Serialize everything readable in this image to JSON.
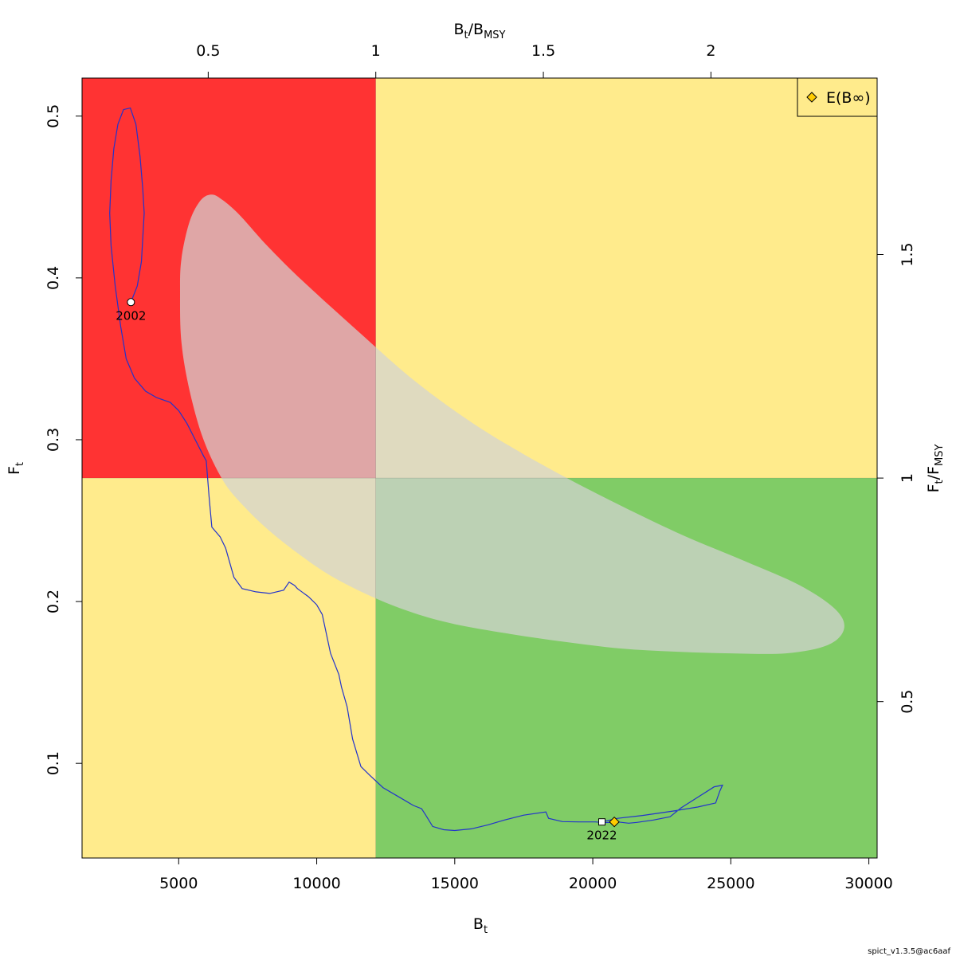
{
  "chart_data": {
    "type": "line",
    "xlabel": {
      "main": "B",
      "sub": "t"
    },
    "ylabel": {
      "main": "F",
      "sub": "t"
    },
    "top_label": {
      "main": "B",
      "sub": "t",
      "slash": "/",
      "main2": "B",
      "sub2": "MSY"
    },
    "right_label": {
      "main": "F",
      "sub": "t",
      "slash": "/",
      "main2": "F",
      "sub2": "MSY"
    },
    "xlim": [
      1500,
      30300
    ],
    "ylim": [
      0.0415,
      0.5235
    ],
    "x_ticks": [
      {
        "v": 5000,
        "label": "5000"
      },
      {
        "v": 10000,
        "label": "10000"
      },
      {
        "v": 15000,
        "label": "15000"
      },
      {
        "v": 20000,
        "label": "20000"
      },
      {
        "v": 25000,
        "label": "25000"
      },
      {
        "v": 30000,
        "label": "30000"
      }
    ],
    "y_ticks": [
      {
        "v": 0.1,
        "label": "0.1"
      },
      {
        "v": 0.2,
        "label": "0.2"
      },
      {
        "v": 0.3,
        "label": "0.3"
      },
      {
        "v": 0.4,
        "label": "0.4"
      },
      {
        "v": 0.5,
        "label": "0.5"
      }
    ],
    "bmsy": 12140,
    "fmsy": 0.2763,
    "top_ticks": [
      {
        "v": 0.5,
        "label": "0.5"
      },
      {
        "v": 1,
        "label": "1"
      },
      {
        "v": 1.5,
        "label": "1.5"
      },
      {
        "v": 2,
        "label": "2"
      }
    ],
    "right_ticks": [
      {
        "v": 0.5,
        "label": "0.5"
      },
      {
        "v": 1,
        "label": "1"
      },
      {
        "v": 1.5,
        "label": "1.5"
      }
    ],
    "colors": {
      "red": "#ff3333",
      "yellow": "#ffeb8c",
      "green": "#80cc66",
      "ellipse": "#d3d3d3",
      "trajectory": "#2233cc",
      "diamond": "#ffcc00"
    },
    "confidence_region": [
      [
        6200,
        0.4515
      ],
      [
        5800,
        0.448
      ],
      [
        5400,
        0.435
      ],
      [
        5100,
        0.412
      ],
      [
        5050,
        0.39
      ],
      [
        5100,
        0.36
      ],
      [
        5400,
        0.33
      ],
      [
        5900,
        0.3
      ],
      [
        6600,
        0.275
      ],
      [
        7300,
        0.26
      ],
      [
        8200,
        0.245
      ],
      [
        9300,
        0.23
      ],
      [
        10500,
        0.216
      ],
      [
        12000,
        0.203
      ],
      [
        13500,
        0.193
      ],
      [
        15000,
        0.186
      ],
      [
        17000,
        0.18
      ],
      [
        19000,
        0.175
      ],
      [
        21000,
        0.171
      ],
      [
        23000,
        0.169
      ],
      [
        25000,
        0.168
      ],
      [
        27000,
        0.168
      ],
      [
        28500,
        0.173
      ],
      [
        29100,
        0.183
      ],
      [
        28800,
        0.195
      ],
      [
        27500,
        0.21
      ],
      [
        25500,
        0.225
      ],
      [
        23000,
        0.243
      ],
      [
        20000,
        0.268
      ],
      [
        17500,
        0.291
      ],
      [
        15500,
        0.312
      ],
      [
        13500,
        0.337
      ],
      [
        11500,
        0.367
      ],
      [
        9500,
        0.398
      ],
      [
        8200,
        0.42
      ],
      [
        7200,
        0.439
      ],
      [
        6600,
        0.448
      ],
      [
        6200,
        0.4515
      ]
    ],
    "trajectory": [
      [
        3270,
        0.385
      ],
      [
        3500,
        0.395
      ],
      [
        3650,
        0.41
      ],
      [
        3750,
        0.44
      ],
      [
        3700,
        0.455
      ],
      [
        3600,
        0.475
      ],
      [
        3450,
        0.495
      ],
      [
        3250,
        0.505
      ],
      [
        3000,
        0.504
      ],
      [
        2800,
        0.495
      ],
      [
        2650,
        0.48
      ],
      [
        2550,
        0.46
      ],
      [
        2500,
        0.44
      ],
      [
        2550,
        0.42
      ],
      [
        2700,
        0.395
      ],
      [
        2900,
        0.37
      ],
      [
        3100,
        0.35
      ],
      [
        3400,
        0.338
      ],
      [
        3800,
        0.33
      ],
      [
        4200,
        0.326
      ],
      [
        4700,
        0.323
      ],
      [
        5000,
        0.318
      ],
      [
        5300,
        0.31
      ],
      [
        5600,
        0.3
      ],
      [
        5900,
        0.29
      ],
      [
        6000,
        0.287
      ],
      [
        6100,
        0.265
      ],
      [
        6200,
        0.246
      ],
      [
        6500,
        0.24
      ],
      [
        6700,
        0.233
      ],
      [
        7000,
        0.215
      ],
      [
        7300,
        0.208
      ],
      [
        7800,
        0.206
      ],
      [
        8300,
        0.205
      ],
      [
        8800,
        0.207
      ],
      [
        9000,
        0.212
      ],
      [
        9200,
        0.21
      ],
      [
        9300,
        0.208
      ],
      [
        9700,
        0.203
      ],
      [
        10000,
        0.198
      ],
      [
        10200,
        0.192
      ],
      [
        10500,
        0.168
      ],
      [
        10800,
        0.155
      ],
      [
        10900,
        0.147
      ],
      [
        11100,
        0.135
      ],
      [
        11300,
        0.115
      ],
      [
        11600,
        0.098
      ],
      [
        11900,
        0.093
      ],
      [
        12400,
        0.085
      ],
      [
        13000,
        0.079
      ],
      [
        13500,
        0.074
      ],
      [
        13800,
        0.072
      ],
      [
        13950,
        0.068
      ],
      [
        14200,
        0.061
      ],
      [
        14600,
        0.059
      ],
      [
        15000,
        0.0585
      ],
      [
        15600,
        0.0595
      ],
      [
        16200,
        0.062
      ],
      [
        16800,
        0.065
      ],
      [
        17500,
        0.068
      ],
      [
        18300,
        0.07
      ],
      [
        18400,
        0.066
      ],
      [
        18900,
        0.064
      ],
      [
        19500,
        0.0638
      ],
      [
        20100,
        0.0638
      ],
      [
        20400,
        0.0633
      ],
      [
        20900,
        0.0638
      ],
      [
        21300,
        0.063
      ],
      [
        21600,
        0.0635
      ],
      [
        22200,
        0.065
      ],
      [
        22800,
        0.067
      ],
      [
        23200,
        0.0725
      ],
      [
        23800,
        0.079
      ],
      [
        24400,
        0.0855
      ],
      [
        24700,
        0.0865
      ],
      [
        24600,
        0.0828
      ],
      [
        24450,
        0.0755
      ],
      [
        23800,
        0.073
      ],
      [
        22900,
        0.0705
      ],
      [
        21800,
        0.0678
      ],
      [
        20900,
        0.066
      ],
      [
        20330,
        0.0638
      ]
    ],
    "points": [
      {
        "label": "2002",
        "x": 3270,
        "y": 0.385,
        "marker": "circle"
      },
      {
        "label": "2022",
        "x": 20330,
        "y": 0.0638,
        "marker": "square"
      }
    ],
    "e_binf": {
      "x": 20780,
      "y": 0.0638
    },
    "legend": {
      "label": "E(B∞)",
      "position": "top-right"
    },
    "footer": "spict_v1.3.5@ac6aaf"
  }
}
